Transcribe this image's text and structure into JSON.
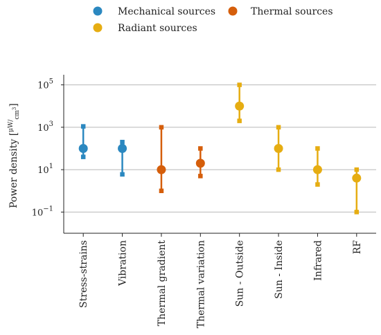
{
  "chart_data": {
    "type": "scatter",
    "subtype": "range-with-point",
    "y_scale": "log",
    "ylabel": "Power density",
    "ylabel_unit": {
      "numerator": "μW",
      "denominator": "cm",
      "exponent": "3"
    },
    "ylim": [
      0.01,
      300000
    ],
    "y_ticks": [
      {
        "value": 0.1,
        "base": "10",
        "exp": "−1"
      },
      {
        "value": 10,
        "base": "10",
        "exp": "1"
      },
      {
        "value": 1000,
        "base": "10",
        "exp": "3"
      },
      {
        "value": 100000,
        "base": "10",
        "exp": "5"
      }
    ],
    "grid": true,
    "legend_position": "top",
    "groups": [
      {
        "key": "mechanical",
        "name": "Mechanical sources",
        "color": "#2b88c0"
      },
      {
        "key": "thermal",
        "name": "Thermal sources",
        "color": "#d55e0b"
      },
      {
        "key": "radiant",
        "name": "Radiant sources",
        "color": "#e6ad12"
      }
    ],
    "categories": [
      {
        "label": "Stress-strains",
        "group": "mechanical",
        "min": 40,
        "mid": 100,
        "max": 1100,
        "inner_low": 40,
        "inner_high": 1100
      },
      {
        "label": "Vibration",
        "group": "mechanical",
        "min": 6,
        "mid": 100,
        "max": 200,
        "inner_low": 6,
        "inner_high": 200
      },
      {
        "label": "Thermal gradient",
        "group": "thermal",
        "min": 1,
        "mid": 10,
        "max": 1000,
        "inner_low": 1,
        "inner_high": 1000
      },
      {
        "label": "Thermal variation",
        "group": "thermal",
        "min": 5,
        "mid": 20,
        "max": 100,
        "inner_low": 5,
        "inner_high": 100
      },
      {
        "label": "Sun - Outside",
        "group": "radiant",
        "min": 2000,
        "mid": 10000,
        "max": 100000,
        "inner_low": 2000,
        "inner_high": 100000
      },
      {
        "label": "Sun - Inside",
        "group": "radiant",
        "min": 10,
        "mid": 100,
        "max": 1000,
        "inner_low": 10,
        "inner_high": 1000
      },
      {
        "label": "Infrared",
        "group": "radiant",
        "min": 2,
        "mid": 10,
        "max": 100,
        "inner_low": 2,
        "inner_high": 100
      },
      {
        "label": "RF",
        "group": "radiant",
        "min": 0.1,
        "mid": 4,
        "max": 10,
        "inner_low": 0.1,
        "inner_high": 10
      }
    ]
  }
}
